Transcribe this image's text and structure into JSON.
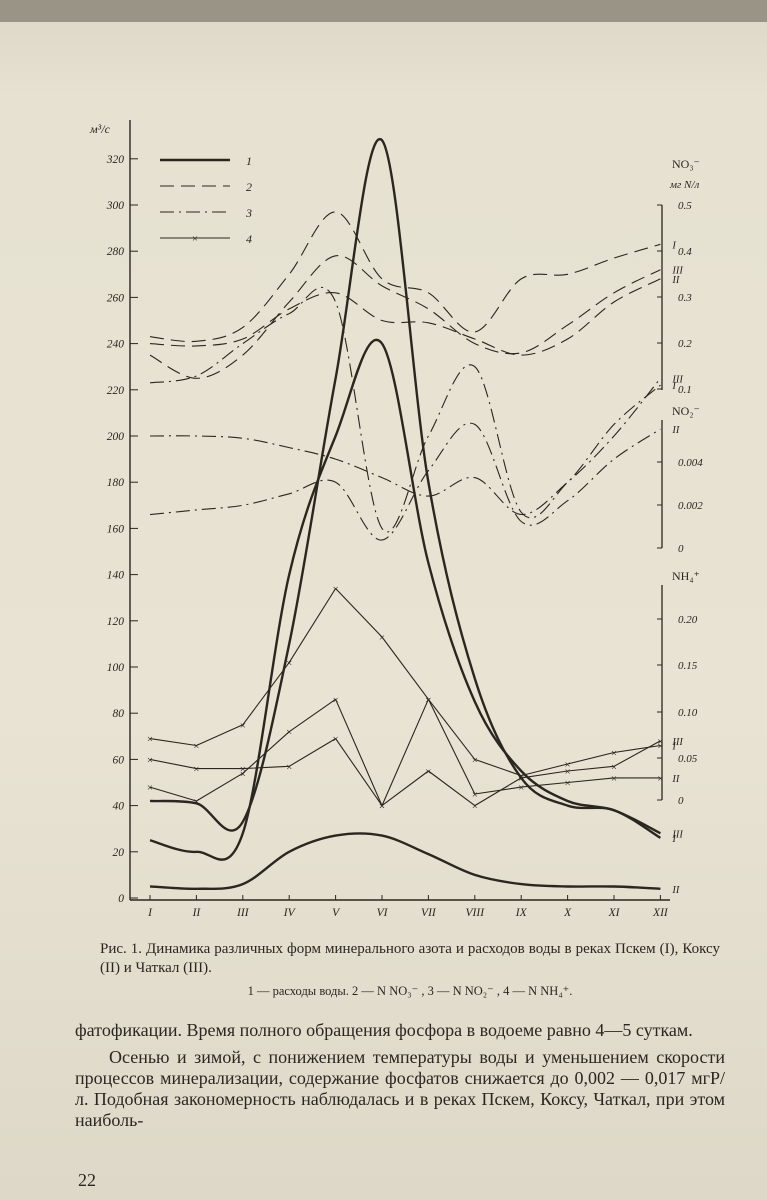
{
  "chart_data": {
    "type": "line",
    "categories": [
      "I",
      "II",
      "III",
      "IV",
      "V",
      "VI",
      "VII",
      "VIII",
      "IX",
      "X",
      "XI",
      "XII"
    ],
    "left_axis": {
      "unit": "м³/с",
      "ylim": [
        0,
        330
      ],
      "ticks": [
        0,
        20,
        40,
        60,
        80,
        100,
        120,
        140,
        160,
        180,
        200,
        220,
        240,
        260,
        280,
        300,
        320
      ]
    },
    "right_axes": [
      {
        "label": "NO₃⁻",
        "unit": "мг N/л",
        "ticks": [
          "0.5",
          "0.4",
          "0.3",
          "0.2",
          "0.1"
        ]
      },
      {
        "label": "NO₂⁻",
        "ticks": [
          "0.004",
          "0.002",
          "0"
        ]
      },
      {
        "label": "NH₄⁺",
        "ticks": [
          "0.20",
          "0.15",
          "0.10",
          "0.05",
          "0"
        ]
      }
    ],
    "legend": [
      {
        "key": "1",
        "style": "solid"
      },
      {
        "key": "2",
        "style": "dashed"
      },
      {
        "key": "3",
        "style": "dash-dot"
      },
      {
        "key": "4",
        "style": "cross"
      }
    ],
    "series": [
      {
        "id": "1-I",
        "style": "solid",
        "end_label": "I",
        "values": [
          42,
          41,
          33,
          110,
          225,
          328,
          180,
          95,
          52,
          40,
          38,
          26
        ]
      },
      {
        "id": "1-II",
        "style": "solid",
        "end_label": "II",
        "values": [
          5,
          4,
          6,
          20,
          27,
          27,
          19,
          10,
          6,
          5,
          5,
          4
        ]
      },
      {
        "id": "1-III",
        "style": "solid",
        "end_label": "III",
        "values": [
          25,
          20,
          28,
          140,
          200,
          240,
          145,
          85,
          55,
          42,
          38,
          28
        ]
      },
      {
        "id": "2-I",
        "style": "dashed",
        "end_label": "I",
        "values": [
          243,
          241,
          247,
          270,
          297,
          268,
          262,
          245,
          268,
          270,
          277,
          283
        ]
      },
      {
        "id": "2-II",
        "style": "dashed",
        "end_label": "II",
        "values": [
          240,
          239,
          242,
          255,
          262,
          250,
          249,
          242,
          235,
          242,
          258,
          268
        ]
      },
      {
        "id": "2-III",
        "style": "dashed",
        "end_label": "III",
        "values": [
          235,
          225,
          235,
          258,
          278,
          265,
          255,
          240,
          236,
          248,
          262,
          272
        ]
      },
      {
        "id": "3-I",
        "style": "dash-dot",
        "end_label": "I",
        "values": [
          223,
          226,
          240,
          253,
          258,
          160,
          200,
          230,
          167,
          180,
          205,
          222
        ]
      },
      {
        "id": "3-II",
        "style": "dash-dot",
        "end_label": "II",
        "values": [
          166,
          168,
          170,
          175,
          180,
          155,
          185,
          205,
          163,
          172,
          190,
          203
        ]
      },
      {
        "id": "3-III",
        "style": "dash-dot",
        "end_label": "III",
        "values": [
          200,
          200,
          199,
          195,
          190,
          182,
          174,
          182,
          166,
          180,
          200,
          225
        ]
      },
      {
        "id": "4-I",
        "style": "cross",
        "end_label": "I",
        "values": [
          69,
          66,
          75,
          102,
          134,
          113,
          86,
          60,
          53,
          58,
          63,
          66
        ]
      },
      {
        "id": "4-II",
        "style": "cross",
        "end_label": "II",
        "values": [
          48,
          42,
          54,
          72,
          86,
          40,
          86,
          45,
          48,
          50,
          52,
          52
        ]
      },
      {
        "id": "4-III",
        "style": "cross",
        "end_label": "III",
        "values": [
          60,
          56,
          56,
          57,
          69,
          40,
          55,
          40,
          52,
          55,
          57,
          68
        ]
      }
    ]
  },
  "caption": {
    "title": "Рис. 1. Динамика различных форм минерального азота и расходов воды в реках Пскем (I), Коксу (II) и Чаткал (III).",
    "legend_line": "1 — расходы воды. 2 — N NO₃⁻ , 3 — N NO₂⁻ , 4 — N NH₄⁺."
  },
  "body": {
    "p1": "фатофикации. Время полного обращения фосфора в водоеме равно 4—5 суткам.",
    "p2": "Осенью и зимой, с понижением температуры воды и уменьшением скорости процессов минерализации, содержание фосфатов снижается до 0,002 — 0,017 мгP/л. Подобная закономерность наблюдалась и в реках Пскем, Коксу, Чаткал, при этом наиболь-"
  },
  "page_number": "22"
}
